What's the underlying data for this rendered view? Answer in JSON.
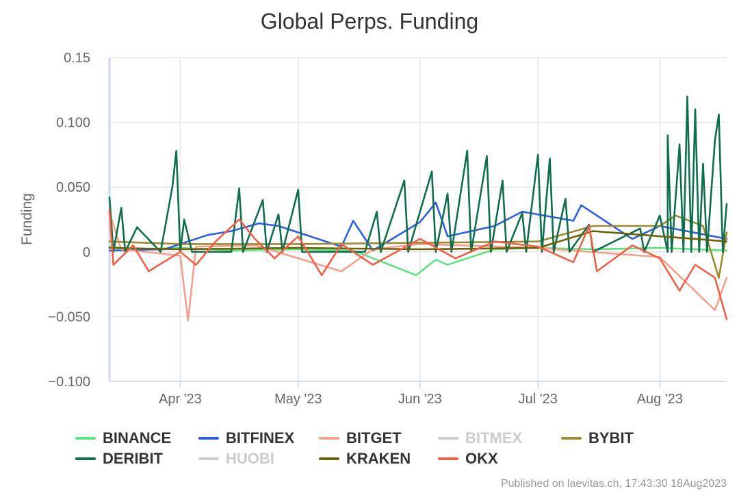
{
  "chart_data": {
    "type": "line",
    "title": "Global Perps. Funding",
    "xlabel": "",
    "ylabel": "Funding",
    "x_range": [
      "2023-03-14",
      "2023-08-18"
    ],
    "ylim": [
      -0.1,
      0.15
    ],
    "y_ticks": [
      {
        "value": 0.15,
        "label": "0.15"
      },
      {
        "value": 0.1,
        "label": "0.100"
      },
      {
        "value": 0.05,
        "label": "0.050"
      },
      {
        "value": 0,
        "label": "0"
      },
      {
        "value": -0.05,
        "label": "−0.050"
      },
      {
        "value": -0.1,
        "label": "−0.100"
      }
    ],
    "x_ticks": [
      {
        "date": "2023-04-01",
        "label": "Apr '23"
      },
      {
        "date": "2023-05-01",
        "label": "May '23"
      },
      {
        "date": "2023-06-01",
        "label": "Jun '23"
      },
      {
        "date": "2023-07-01",
        "label": "Jul '23"
      },
      {
        "date": "2023-08-01",
        "label": "Aug '23"
      }
    ],
    "grid": true,
    "legend_position": "bottom",
    "series": [
      {
        "name": "BINANCE",
        "color": "#5ee37d",
        "visible": true,
        "legend_col": 0,
        "legend_row": 0,
        "points": [
          [
            "2023-03-14",
            0.004
          ],
          [
            "2023-03-20",
            0.002
          ],
          [
            "2023-04-01",
            0.003
          ],
          [
            "2023-04-15",
            0.001
          ],
          [
            "2023-05-01",
            0.002
          ],
          [
            "2023-05-15",
            0.001
          ],
          [
            "2023-05-31",
            -0.018
          ],
          [
            "2023-06-05",
            -0.006
          ],
          [
            "2023-06-08",
            -0.01
          ],
          [
            "2023-06-20",
            0.002
          ],
          [
            "2023-07-01",
            0.003
          ],
          [
            "2023-07-15",
            0.002
          ],
          [
            "2023-08-01",
            0.003
          ],
          [
            "2023-08-10",
            0.002
          ],
          [
            "2023-08-18",
            0.001
          ]
        ]
      },
      {
        "name": "BITFINEX",
        "color": "#2b5fe0",
        "visible": true,
        "legend_col": 1,
        "legend_row": 0,
        "points": [
          [
            "2023-03-14",
            0.001
          ],
          [
            "2023-03-28",
            0.002
          ],
          [
            "2023-04-08",
            0.013
          ],
          [
            "2023-04-14",
            0.016
          ],
          [
            "2023-04-21",
            0.022
          ],
          [
            "2023-04-26",
            0.02
          ],
          [
            "2023-05-12",
            0.004
          ],
          [
            "2023-05-15",
            0.024
          ],
          [
            "2023-05-20",
            0.001
          ],
          [
            "2023-06-01",
            0.023
          ],
          [
            "2023-06-05",
            0.038
          ],
          [
            "2023-06-08",
            0.012
          ],
          [
            "2023-06-20",
            0.02
          ],
          [
            "2023-06-27",
            0.031
          ],
          [
            "2023-07-10",
            0.024
          ],
          [
            "2023-07-12",
            0.036
          ],
          [
            "2023-07-25",
            0.01
          ],
          [
            "2023-08-01",
            0.02
          ],
          [
            "2023-08-18",
            0.01
          ]
        ]
      },
      {
        "name": "BITGET",
        "color": "#f4a08a",
        "visible": true,
        "legend_col": 2,
        "legend_row": 0,
        "points": [
          [
            "2023-03-14",
            0.03
          ],
          [
            "2023-03-17",
            0.002
          ],
          [
            "2023-04-01",
            -0.003
          ],
          [
            "2023-04-03",
            -0.053
          ],
          [
            "2023-04-05",
            0.004
          ],
          [
            "2023-04-20",
            0.005
          ],
          [
            "2023-05-01",
            -0.005
          ],
          [
            "2023-05-12",
            -0.015
          ],
          [
            "2023-05-20",
            0.002
          ],
          [
            "2023-06-01",
            0.006
          ],
          [
            "2023-07-01",
            0.003
          ],
          [
            "2023-08-01",
            -0.004
          ],
          [
            "2023-08-15",
            -0.045
          ],
          [
            "2023-08-18",
            -0.02
          ]
        ]
      },
      {
        "name": "BITMEX",
        "color": "#cccccc",
        "visible": false,
        "legend_col": 3,
        "legend_row": 0,
        "points": []
      },
      {
        "name": "BYBIT",
        "color": "#9c8a30",
        "visible": true,
        "legend_col": 4,
        "legend_row": 0,
        "points": [
          [
            "2023-03-14",
            0.008
          ],
          [
            "2023-04-01",
            0.006
          ],
          [
            "2023-05-01",
            0.006
          ],
          [
            "2023-06-01",
            0.007
          ],
          [
            "2023-07-01",
            0.008
          ],
          [
            "2023-07-15",
            0.02
          ],
          [
            "2023-08-01",
            0.02
          ],
          [
            "2023-08-05",
            0.028
          ],
          [
            "2023-08-12",
            0.02
          ],
          [
            "2023-08-16",
            -0.02
          ],
          [
            "2023-08-18",
            0.015
          ]
        ]
      },
      {
        "name": "DERIBIT",
        "color": "#0e6e4e",
        "visible": true,
        "legend_col": 0,
        "legend_row": 1,
        "points": [
          [
            "2023-03-14",
            0.042
          ],
          [
            "2023-03-15",
            0.0
          ],
          [
            "2023-03-17",
            0.034
          ],
          [
            "2023-03-18",
            0.0
          ],
          [
            "2023-03-21",
            0.019
          ],
          [
            "2023-03-27",
            0.0
          ],
          [
            "2023-03-30",
            0.05
          ],
          [
            "2023-03-31",
            0.078
          ],
          [
            "2023-04-01",
            0.0
          ],
          [
            "2023-04-02",
            0.025
          ],
          [
            "2023-04-04",
            0.0
          ],
          [
            "2023-04-14",
            0.0
          ],
          [
            "2023-04-16",
            0.049
          ],
          [
            "2023-04-17",
            0.0
          ],
          [
            "2023-04-22",
            0.04
          ],
          [
            "2023-04-23",
            0.0
          ],
          [
            "2023-04-26",
            0.029
          ],
          [
            "2023-04-27",
            0.0
          ],
          [
            "2023-05-01",
            0.048
          ],
          [
            "2023-05-02",
            0.0
          ],
          [
            "2023-05-18",
            0.0
          ],
          [
            "2023-05-21",
            0.031
          ],
          [
            "2023-05-22",
            0.0
          ],
          [
            "2023-05-28",
            0.055
          ],
          [
            "2023-05-29",
            0.0
          ],
          [
            "2023-06-04",
            0.062
          ],
          [
            "2023-06-05",
            0.0
          ],
          [
            "2023-06-08",
            0.045
          ],
          [
            "2023-06-09",
            0.0
          ],
          [
            "2023-06-13",
            0.078
          ],
          [
            "2023-06-14",
            0.0
          ],
          [
            "2023-06-18",
            0.074
          ],
          [
            "2023-06-19",
            0.0
          ],
          [
            "2023-06-22",
            0.055
          ],
          [
            "2023-06-23",
            0.0
          ],
          [
            "2023-06-27",
            0.03
          ],
          [
            "2023-06-28",
            0.0
          ],
          [
            "2023-07-01",
            0.075
          ],
          [
            "2023-07-02",
            0.0
          ],
          [
            "2023-07-04",
            0.072
          ],
          [
            "2023-07-05",
            0.0
          ],
          [
            "2023-07-08",
            0.041
          ],
          [
            "2023-07-09",
            0.0
          ],
          [
            "2023-07-14",
            0.021
          ],
          [
            "2023-07-15",
            0.0
          ],
          [
            "2023-07-27",
            0.018
          ],
          [
            "2023-07-28",
            0.0
          ],
          [
            "2023-08-01",
            0.028
          ],
          [
            "2023-08-03",
            0.0
          ],
          [
            "2023-08-03",
            0.09
          ],
          [
            "2023-08-04",
            0.0
          ],
          [
            "2023-08-06",
            0.083
          ],
          [
            "2023-08-07",
            0.0
          ],
          [
            "2023-08-08",
            0.12
          ],
          [
            "2023-08-09",
            0.0
          ],
          [
            "2023-08-10",
            0.11
          ],
          [
            "2023-08-11",
            0.0
          ],
          [
            "2023-08-12",
            0.068
          ],
          [
            "2023-08-13",
            0.0
          ],
          [
            "2023-08-15",
            0.086
          ],
          [
            "2023-08-16",
            0.106
          ],
          [
            "2023-08-17",
            0.0
          ],
          [
            "2023-08-18",
            0.037
          ]
        ]
      },
      {
        "name": "HUOBI",
        "color": "#cccccc",
        "visible": false,
        "legend_col": 1,
        "legend_row": 1,
        "points": []
      },
      {
        "name": "KRAKEN",
        "color": "#6b6106",
        "visible": true,
        "legend_col": 2,
        "legend_row": 1,
        "points": [
          [
            "2023-03-14",
            0.003
          ],
          [
            "2023-04-01",
            0.002
          ],
          [
            "2023-05-01",
            0.003
          ],
          [
            "2023-06-01",
            0.002
          ],
          [
            "2023-07-01",
            0.003
          ],
          [
            "2023-07-15",
            0.016
          ],
          [
            "2023-08-01",
            0.012
          ],
          [
            "2023-08-10",
            0.01
          ],
          [
            "2023-08-18",
            0.008
          ]
        ]
      },
      {
        "name": "OKX",
        "color": "#f06048",
        "visible": true,
        "legend_col": 3,
        "legend_row": 1,
        "points": [
          [
            "2023-03-14",
            0.032
          ],
          [
            "2023-03-15",
            -0.01
          ],
          [
            "2023-03-20",
            0.005
          ],
          [
            "2023-03-24",
            -0.015
          ],
          [
            "2023-04-01",
            0.0
          ],
          [
            "2023-04-05",
            -0.01
          ],
          [
            "2023-04-10",
            0.008
          ],
          [
            "2023-04-16",
            0.025
          ],
          [
            "2023-04-20",
            0.01
          ],
          [
            "2023-04-25",
            -0.005
          ],
          [
            "2023-05-01",
            0.012
          ],
          [
            "2023-05-07",
            -0.018
          ],
          [
            "2023-05-12",
            0.006
          ],
          [
            "2023-05-20",
            -0.01
          ],
          [
            "2023-06-01",
            0.01
          ],
          [
            "2023-06-10",
            -0.005
          ],
          [
            "2023-06-20",
            0.008
          ],
          [
            "2023-07-01",
            0.004
          ],
          [
            "2023-07-10",
            -0.008
          ],
          [
            "2023-07-14",
            0.02
          ],
          [
            "2023-07-16",
            -0.015
          ],
          [
            "2023-07-25",
            0.005
          ],
          [
            "2023-08-01",
            -0.005
          ],
          [
            "2023-08-06",
            -0.03
          ],
          [
            "2023-08-10",
            -0.01
          ],
          [
            "2023-08-15",
            -0.02
          ],
          [
            "2023-08-18",
            -0.052
          ]
        ]
      }
    ]
  },
  "credit": "Published on laevitas.ch, 17:43:30 18Aug2023"
}
